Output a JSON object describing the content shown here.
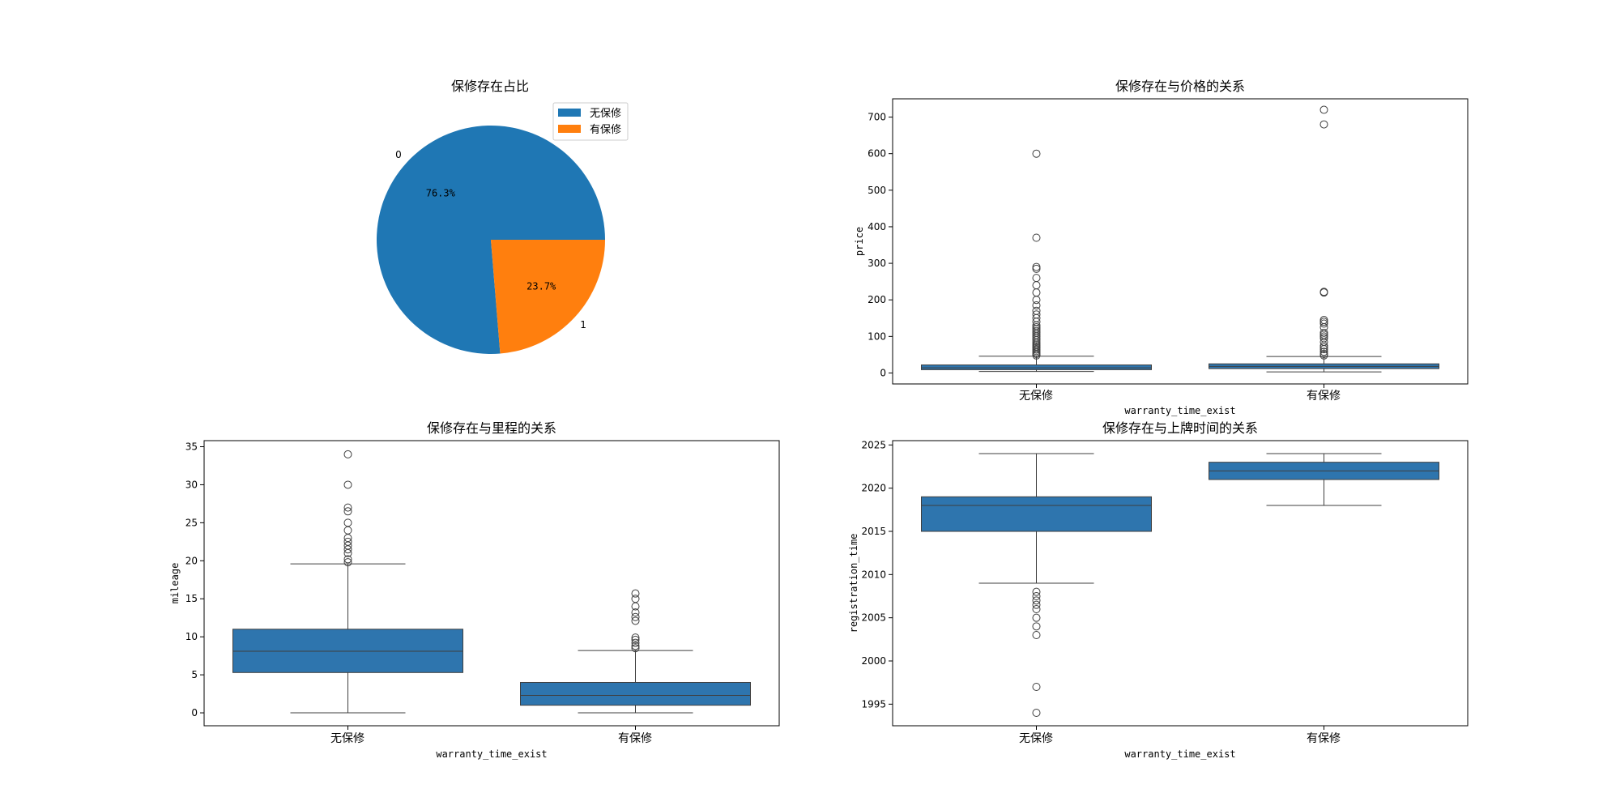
{
  "chart_data": [
    {
      "type": "pie",
      "title": "保修存在占比",
      "labels": [
        "0",
        "1"
      ],
      "values": [
        76.3,
        23.7
      ],
      "pct_labels": [
        "76.3%",
        "23.7%"
      ],
      "colors": [
        "#1f77b4",
        "#ff7f0e"
      ],
      "legend": {
        "entries": [
          "无保修",
          "有保修"
        ],
        "placement": "top-right"
      }
    },
    {
      "type": "box",
      "title": "保修存在与价格的关系",
      "xlabel": "warranty_time_exist",
      "ylabel": "price",
      "categories": [
        "无保修",
        "有保修"
      ],
      "ylim": [
        -30,
        750
      ],
      "yticks": [
        0,
        100,
        200,
        300,
        400,
        500,
        600,
        700
      ],
      "color": "#2e75ae",
      "boxes": [
        {
          "whislo": 4,
          "q1": 9,
          "med": 14,
          "q3": 22,
          "whishi": 46,
          "fliers": [
            48,
            52,
            56,
            60,
            64,
            68,
            72,
            76,
            80,
            85,
            90,
            95,
            100,
            105,
            110,
            115,
            120,
            125,
            130,
            140,
            150,
            160,
            170,
            185,
            200,
            220,
            240,
            260,
            285,
            290,
            370,
            600
          ]
        },
        {
          "whislo": 3,
          "q1": 12,
          "med": 18,
          "q3": 25,
          "whishi": 45,
          "fliers": [
            48,
            52,
            58,
            65,
            70,
            75,
            85,
            95,
            100,
            105,
            110,
            125,
            135,
            140,
            145,
            220,
            222,
            680,
            720
          ]
        }
      ]
    },
    {
      "type": "box",
      "title": "保修存在与里程的关系",
      "xlabel": "warranty_time_exist",
      "ylabel": "mileage",
      "categories": [
        "无保修",
        "有保修"
      ],
      "ylim": [
        -1.7,
        35.8
      ],
      "yticks": [
        0,
        5,
        10,
        15,
        20,
        25,
        30,
        35
      ],
      "color": "#2e75ae",
      "boxes": [
        {
          "whislo": 0,
          "q1": 5.3,
          "med": 8.1,
          "q3": 11,
          "whishi": 19.6,
          "fliers": [
            19.8,
            20.2,
            21,
            21.5,
            22,
            22.5,
            23,
            24,
            25,
            26.5,
            27,
            30,
            34
          ]
        },
        {
          "whislo": 0,
          "q1": 1,
          "med": 2.3,
          "q3": 4,
          "whishi": 8.2,
          "fliers": [
            8.5,
            8.8,
            9.2,
            9.6,
            9.9,
            12.1,
            12.6,
            13.2,
            14,
            15,
            15.7
          ]
        }
      ]
    },
    {
      "type": "box",
      "title": "保修存在与上牌时间的关系",
      "xlabel": "warranty_time_exist",
      "ylabel": "registration_time",
      "categories": [
        "无保修",
        "有保修"
      ],
      "ylim": [
        1992.5,
        2025.5
      ],
      "yticks": [
        1995,
        2000,
        2005,
        2010,
        2015,
        2020,
        2025
      ],
      "color": "#2e75ae",
      "boxes": [
        {
          "whislo": 2009,
          "q1": 2015,
          "med": 2018,
          "q3": 2019,
          "whishi": 2024,
          "fliers": [
            2008,
            2007.5,
            2007,
            2006.5,
            2006,
            2005,
            2004,
            2003,
            1997,
            1994
          ]
        },
        {
          "whislo": 2018,
          "q1": 2021,
          "med": 2022,
          "q3": 2023,
          "whishi": 2024,
          "fliers": []
        }
      ]
    }
  ]
}
